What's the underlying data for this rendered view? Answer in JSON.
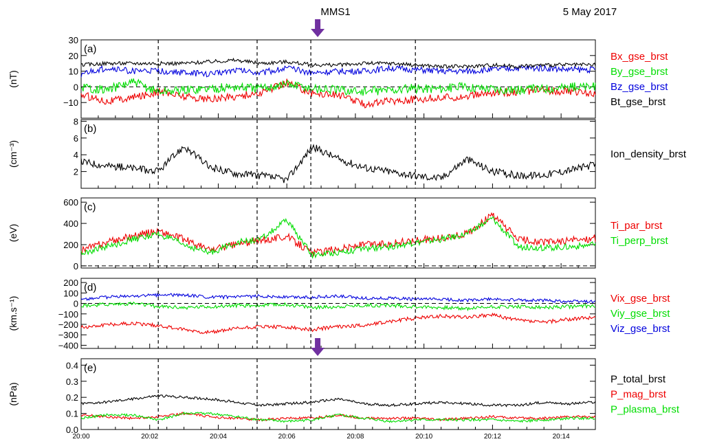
{
  "header": {
    "spacecraft": "MMS1",
    "date": "5 May 2017"
  },
  "colors": {
    "red": "#ee0000",
    "green": "#00dd00",
    "blue": "#0000dd",
    "black": "#000000",
    "arrow": "#7030a0"
  },
  "time_axis": {
    "start": "20:00",
    "end": "20:15",
    "tick_labels": [
      "20:00",
      "20:02",
      "20:04",
      "20:06",
      "20:08",
      "20:10",
      "20:12",
      "20:14"
    ],
    "dashed_lines": [
      "20:02:15",
      "20:05:08",
      "20:06:42",
      "20:09:45"
    ],
    "arrow_time": "20:06:54"
  },
  "chart_data": [
    {
      "type": "line",
      "panel_label": "(a)",
      "ylabel": "(nT)",
      "ylim": [
        -20,
        30
      ],
      "ytick_labels": [
        "30",
        "20",
        "10",
        "0",
        "−10"
      ],
      "zero_line": true,
      "arrow": true,
      "series": [
        {
          "name": "Bx_gse_brst",
          "color": "#ee0000",
          "base": [
            -5,
            -9,
            -7,
            -3,
            -6,
            -8,
            -6,
            -4,
            3,
            -4,
            -5,
            -11,
            -9,
            -8,
            -7,
            -6,
            -4,
            -3,
            -2,
            -3,
            -4
          ],
          "noise": 2.5
        },
        {
          "name": "By_gse_brst",
          "color": "#00dd00",
          "base": [
            0,
            -2,
            3,
            -3,
            -2,
            -1,
            0,
            -1,
            2,
            -1,
            -2,
            -3,
            -2,
            -1,
            -1,
            0,
            -1,
            -2,
            -1,
            0,
            0
          ],
          "noise": 3
        },
        {
          "name": "Bz_gse_brst",
          "color": "#0000dd",
          "base": [
            8,
            12,
            10,
            10,
            9,
            8,
            11,
            9,
            12,
            9,
            10,
            10,
            12,
            11,
            10,
            10,
            11,
            12,
            12,
            11,
            11
          ],
          "noise": 2
        },
        {
          "name": "Bt_gse_brst",
          "color": "#000000",
          "base": [
            14,
            15,
            15,
            15,
            15,
            16,
            17,
            15,
            16,
            14,
            14,
            15,
            15,
            14,
            13,
            13,
            14,
            13,
            14,
            14,
            14
          ],
          "noise": 1.2
        }
      ]
    },
    {
      "type": "line",
      "panel_label": "(b)",
      "ylabel": "(cm⁻³)",
      "ylim": [
        0,
        8.2
      ],
      "ytick_labels": [
        "8",
        "6",
        "4",
        "2"
      ],
      "zero_line": false,
      "arrow": false,
      "series": [
        {
          "name": "Ion_density_brst",
          "color": "#000000",
          "base": [
            3.2,
            2.7,
            2.4,
            2.0,
            5.0,
            2.5,
            1.8,
            1.5,
            1.0,
            5.0,
            3.5,
            2.5,
            2.0,
            1.5,
            1.2,
            3.5,
            2.0,
            1.5,
            1.6,
            2.2,
            2.8
          ],
          "noise": 0.45
        }
      ]
    },
    {
      "type": "line",
      "panel_label": "(c)",
      "ylabel": "(eV)",
      "ylim": [
        -20,
        640
      ],
      "ytick_labels": [
        "600",
        "400",
        "200",
        "0"
      ],
      "zero_line": true,
      "arrow": false,
      "series": [
        {
          "name": "Ti_par_brst",
          "color": "#ee0000",
          "base": [
            150,
            220,
            280,
            330,
            250,
            150,
            200,
            240,
            280,
            120,
            160,
            200,
            210,
            240,
            260,
            300,
            480,
            250,
            220,
            240,
            260
          ],
          "noise": 35
        },
        {
          "name": "Ti_perp_brst",
          "color": "#00dd00",
          "base": [
            120,
            180,
            250,
            300,
            200,
            120,
            220,
            250,
            430,
            100,
            130,
            160,
            180,
            220,
            250,
            300,
            450,
            180,
            170,
            180,
            200
          ],
          "noise": 30
        }
      ]
    },
    {
      "type": "line",
      "panel_label": "(d)",
      "ylabel": "(km.s⁻¹)",
      "ylim": [
        -430,
        240
      ],
      "ytick_labels": [
        "200",
        "100",
        "0",
        "−100",
        "−200",
        "−300",
        "−400"
      ],
      "zero_line": true,
      "arrow": false,
      "series": [
        {
          "name": "Vix_gse_brst",
          "color": "#ee0000",
          "base": [
            -230,
            -200,
            -190,
            -210,
            -250,
            -280,
            -240,
            -220,
            -230,
            -250,
            -220,
            -210,
            -170,
            -140,
            -120,
            -130,
            -110,
            -160,
            -180,
            -150,
            -130
          ],
          "noise": 18
        },
        {
          "name": "Viy_gse_brst",
          "color": "#00dd00",
          "base": [
            -20,
            -10,
            0,
            -30,
            -40,
            -30,
            -20,
            -20,
            -10,
            -40,
            -30,
            -20,
            -20,
            -30,
            -40,
            -50,
            -30,
            -30,
            -40,
            -30,
            -20
          ],
          "noise": 18
        },
        {
          "name": "Viz_gse_brst",
          "color": "#0000dd",
          "base": [
            40,
            60,
            70,
            80,
            80,
            60,
            60,
            70,
            60,
            60,
            70,
            50,
            50,
            40,
            40,
            30,
            40,
            30,
            30,
            20,
            20
          ],
          "noise": 15
        }
      ]
    },
    {
      "type": "line",
      "panel_label": "(e)",
      "ylabel": "(nPa)",
      "ylim": [
        0,
        0.44
      ],
      "ytick_labels": [
        "0.4",
        "0.3",
        "0.2",
        "0.1",
        "0.0"
      ],
      "zero_line": false,
      "arrow": true,
      "series": [
        {
          "name": "P_total_brst",
          "color": "#000000",
          "base": [
            0.16,
            0.17,
            0.19,
            0.21,
            0.2,
            0.19,
            0.17,
            0.15,
            0.16,
            0.17,
            0.19,
            0.16,
            0.15,
            0.16,
            0.17,
            0.16,
            0.15,
            0.15,
            0.17,
            0.16,
            0.17
          ],
          "noise": 0.008
        },
        {
          "name": "P_mag_brst",
          "color": "#ee0000",
          "base": [
            0.09,
            0.08,
            0.07,
            0.08,
            0.1,
            0.08,
            0.07,
            0.06,
            0.07,
            0.07,
            0.09,
            0.07,
            0.07,
            0.07,
            0.06,
            0.07,
            0.08,
            0.07,
            0.07,
            0.08,
            0.08
          ],
          "noise": 0.008
        },
        {
          "name": "P_plasma_brst",
          "color": "#00dd00",
          "base": [
            0.07,
            0.09,
            0.09,
            0.06,
            0.1,
            0.1,
            0.08,
            0.06,
            0.05,
            0.06,
            0.09,
            0.07,
            0.05,
            0.06,
            0.06,
            0.06,
            0.06,
            0.05,
            0.06,
            0.07,
            0.07
          ],
          "noise": 0.008
        }
      ]
    }
  ]
}
